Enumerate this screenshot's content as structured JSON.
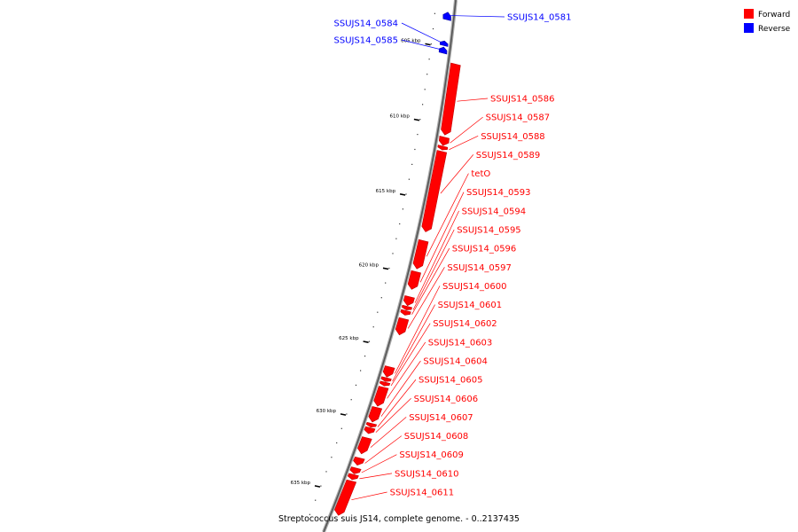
{
  "colors": {
    "forward": "#ff0000",
    "reverse": "#0000ff",
    "backbone": "#555555"
  },
  "legend": [
    {
      "label": "Forward",
      "color": "#ff0000"
    },
    {
      "label": "Reverse",
      "color": "#0000ff"
    }
  ],
  "caption": "Streptococcus suis JS14, complete genome. - 0..2137435",
  "ticks": [
    {
      "kbp": 605,
      "label": "605 kbp"
    },
    {
      "kbp": 610,
      "label": "610 kbp"
    },
    {
      "kbp": 615,
      "label": "615 kbp"
    },
    {
      "kbp": 620,
      "label": "620 kbp"
    },
    {
      "kbp": 625,
      "label": "625 kbp"
    },
    {
      "kbp": 630,
      "label": "630 kbp"
    },
    {
      "kbp": 635,
      "label": "635 kbp"
    }
  ],
  "genes": [
    {
      "name": "SSUJS14_0581",
      "strand": "reverse",
      "start_kbp": 602.7,
      "end_kbp": 603.2
    },
    {
      "name": "SSUJS14_0584",
      "strand": "reverse",
      "start_kbp": 604.6,
      "end_kbp": 604.9
    },
    {
      "name": "SSUJS14_0585",
      "strand": "reverse",
      "start_kbp": 605.0,
      "end_kbp": 605.4
    },
    {
      "name": "SSUJS14_0586",
      "strand": "forward",
      "start_kbp": 605.9,
      "end_kbp": 610.6
    },
    {
      "name": "SSUJS14_0587",
      "strand": "forward",
      "start_kbp": 610.75,
      "end_kbp": 611.3
    },
    {
      "name": "SSUJS14_0588",
      "strand": "forward",
      "start_kbp": 611.35,
      "end_kbp": 611.6
    },
    {
      "name": "SSUJS14_0589",
      "strand": "forward",
      "start_kbp": 611.7,
      "end_kbp": 617.1
    },
    {
      "name": "tetO",
      "strand": "forward",
      "start_kbp": 617.7,
      "end_kbp": 619.6
    },
    {
      "name": "SSUJS14_0593",
      "strand": "forward",
      "start_kbp": 619.8,
      "end_kbp": 621.0
    },
    {
      "name": "SSUJS14_0594",
      "strand": "forward",
      "start_kbp": 621.5,
      "end_kbp": 622.1
    },
    {
      "name": "SSUJS14_0595",
      "strand": "forward",
      "start_kbp": 622.15,
      "end_kbp": 622.4
    },
    {
      "name": "SSUJS14_0596",
      "strand": "forward",
      "start_kbp": 622.45,
      "end_kbp": 622.75
    },
    {
      "name": "SSUJS14_0597",
      "strand": "forward",
      "start_kbp": 623.0,
      "end_kbp": 624.1
    },
    {
      "name": "SSUJS14_0600",
      "strand": "forward",
      "start_kbp": 626.3,
      "end_kbp": 627.0
    },
    {
      "name": "SSUJS14_0601",
      "strand": "forward",
      "start_kbp": 627.05,
      "end_kbp": 627.3
    },
    {
      "name": "SSUJS14_0602",
      "strand": "forward",
      "start_kbp": 627.35,
      "end_kbp": 627.6
    },
    {
      "name": "SSUJS14_0603",
      "strand": "forward",
      "start_kbp": 627.7,
      "end_kbp": 629.0
    },
    {
      "name": "SSUJS14_0604",
      "strand": "forward",
      "start_kbp": 629.1,
      "end_kbp": 630.1
    },
    {
      "name": "SSUJS14_0605",
      "strand": "forward",
      "start_kbp": 630.2,
      "end_kbp": 630.45
    },
    {
      "name": "SSUJS14_0606",
      "strand": "forward",
      "start_kbp": 630.5,
      "end_kbp": 630.9
    },
    {
      "name": "SSUJS14_0607",
      "strand": "forward",
      "start_kbp": 631.2,
      "end_kbp": 632.3
    },
    {
      "name": "SSUJS14_0608",
      "strand": "forward",
      "start_kbp": 632.6,
      "end_kbp": 633.1
    },
    {
      "name": "SSUJS14_0609",
      "strand": "forward",
      "start_kbp": 633.3,
      "end_kbp": 633.7
    },
    {
      "name": "SSUJS14_0610",
      "strand": "forward",
      "start_kbp": 633.75,
      "end_kbp": 634.1
    },
    {
      "name": "SSUJS14_0611",
      "strand": "forward",
      "start_kbp": 634.2,
      "end_kbp": 636.6
    }
  ]
}
